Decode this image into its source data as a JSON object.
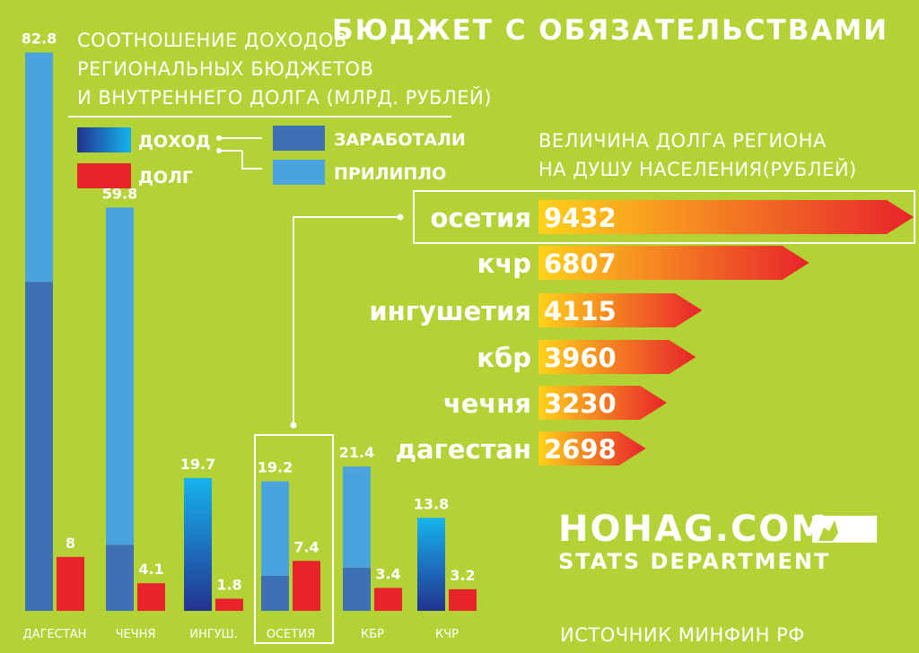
{
  "title": "БЮДЖЕТ С ОБЯЗАТЕЛЬСТВАМИ",
  "left_chart_title": [
    "СООТНОШЕНИЕ ДОХОДОВ",
    "РЕГИОНАЛЬНЫХ БЮДЖЕТОВ",
    "И ВНУТРЕННЕГО ДОЛГА (МЛРД. РУБЛЕЙ)"
  ],
  "legend": {
    "income": "ДОХОД",
    "debt": "ДОЛГ",
    "earned": "ЗАРАБОТАЛИ",
    "received": "ПРИЛИПЛО"
  },
  "right_chart_title": [
    "ВЕЛИЧИНА ДОЛГА РЕГИОНА",
    "НА ДУШУ НАСЕЛЕНИЯ(РУБЛЕЙ)"
  ],
  "brand": {
    "name": "HOHAG.COM",
    "dept": "STATS DEPARTMENT"
  },
  "source": "ИСТОЧНИК МИНФИН РФ",
  "colors": {
    "background": "#b3d236",
    "earned": "#3f6fb5",
    "received": "#4aa3df",
    "debt": "#e8232b",
    "arrow_start": "#ffd21a",
    "arrow_end": "#e8232b"
  },
  "chart_data": [
    {
      "type": "bar",
      "title": "СООТНОШЕНИЕ ДОХОДОВ РЕГИОНАЛЬНЫХ БЮДЖЕТОВ И ВНУТРЕННЕГО ДОЛГА (МЛРД. РУБЛЕЙ)",
      "categories": [
        "ДАГЕСТАН",
        "ЧЕЧНЯ",
        "ИНГУШ.",
        "ОСЕТИЯ",
        "КБР",
        "КЧР"
      ],
      "series": [
        {
          "name": "ДОХОД",
          "values": [
            82.8,
            59.8,
            19.7,
            19.2,
            21.4,
            13.8
          ],
          "components": {
            "ЗАРАБОТАЛИ": [
              48.8,
              9.8,
              null,
              5.2,
              6.4,
              null
            ],
            "ПРИЛИПЛО": [
              34.0,
              50.0,
              null,
              14.0,
              15.0,
              null
            ]
          }
        },
        {
          "name": "ДОЛГ",
          "values": [
            8,
            4.1,
            1.8,
            7.4,
            3.4,
            3.2
          ]
        }
      ],
      "value_labels": {
        "income": [
          "82.8",
          "59.8",
          "19.7",
          "19.2",
          "21.4",
          "13.8"
        ],
        "debt": [
          "8",
          "4.1",
          "1.8",
          "7.4",
          "3.4",
          "3.2"
        ]
      },
      "highlight": "ОСЕТИЯ",
      "ylim": [
        0,
        83
      ]
    },
    {
      "type": "bar",
      "orientation": "horizontal",
      "title": "ВЕЛИЧИНА ДОЛГА РЕГИОНА НА ДУШУ НАСЕЛЕНИЯ(РУБЛЕЙ)",
      "categories": [
        "осетия",
        "кчр",
        "ингушетия",
        "кбр",
        "чечня",
        "дагестан"
      ],
      "values": [
        9432,
        6807,
        4115,
        3960,
        3230,
        2698
      ],
      "value_labels": [
        "9432",
        "6807",
        "4115",
        "3960",
        "3230",
        "2698"
      ],
      "highlight": "осетия",
      "xlim": [
        0,
        9432
      ]
    }
  ]
}
